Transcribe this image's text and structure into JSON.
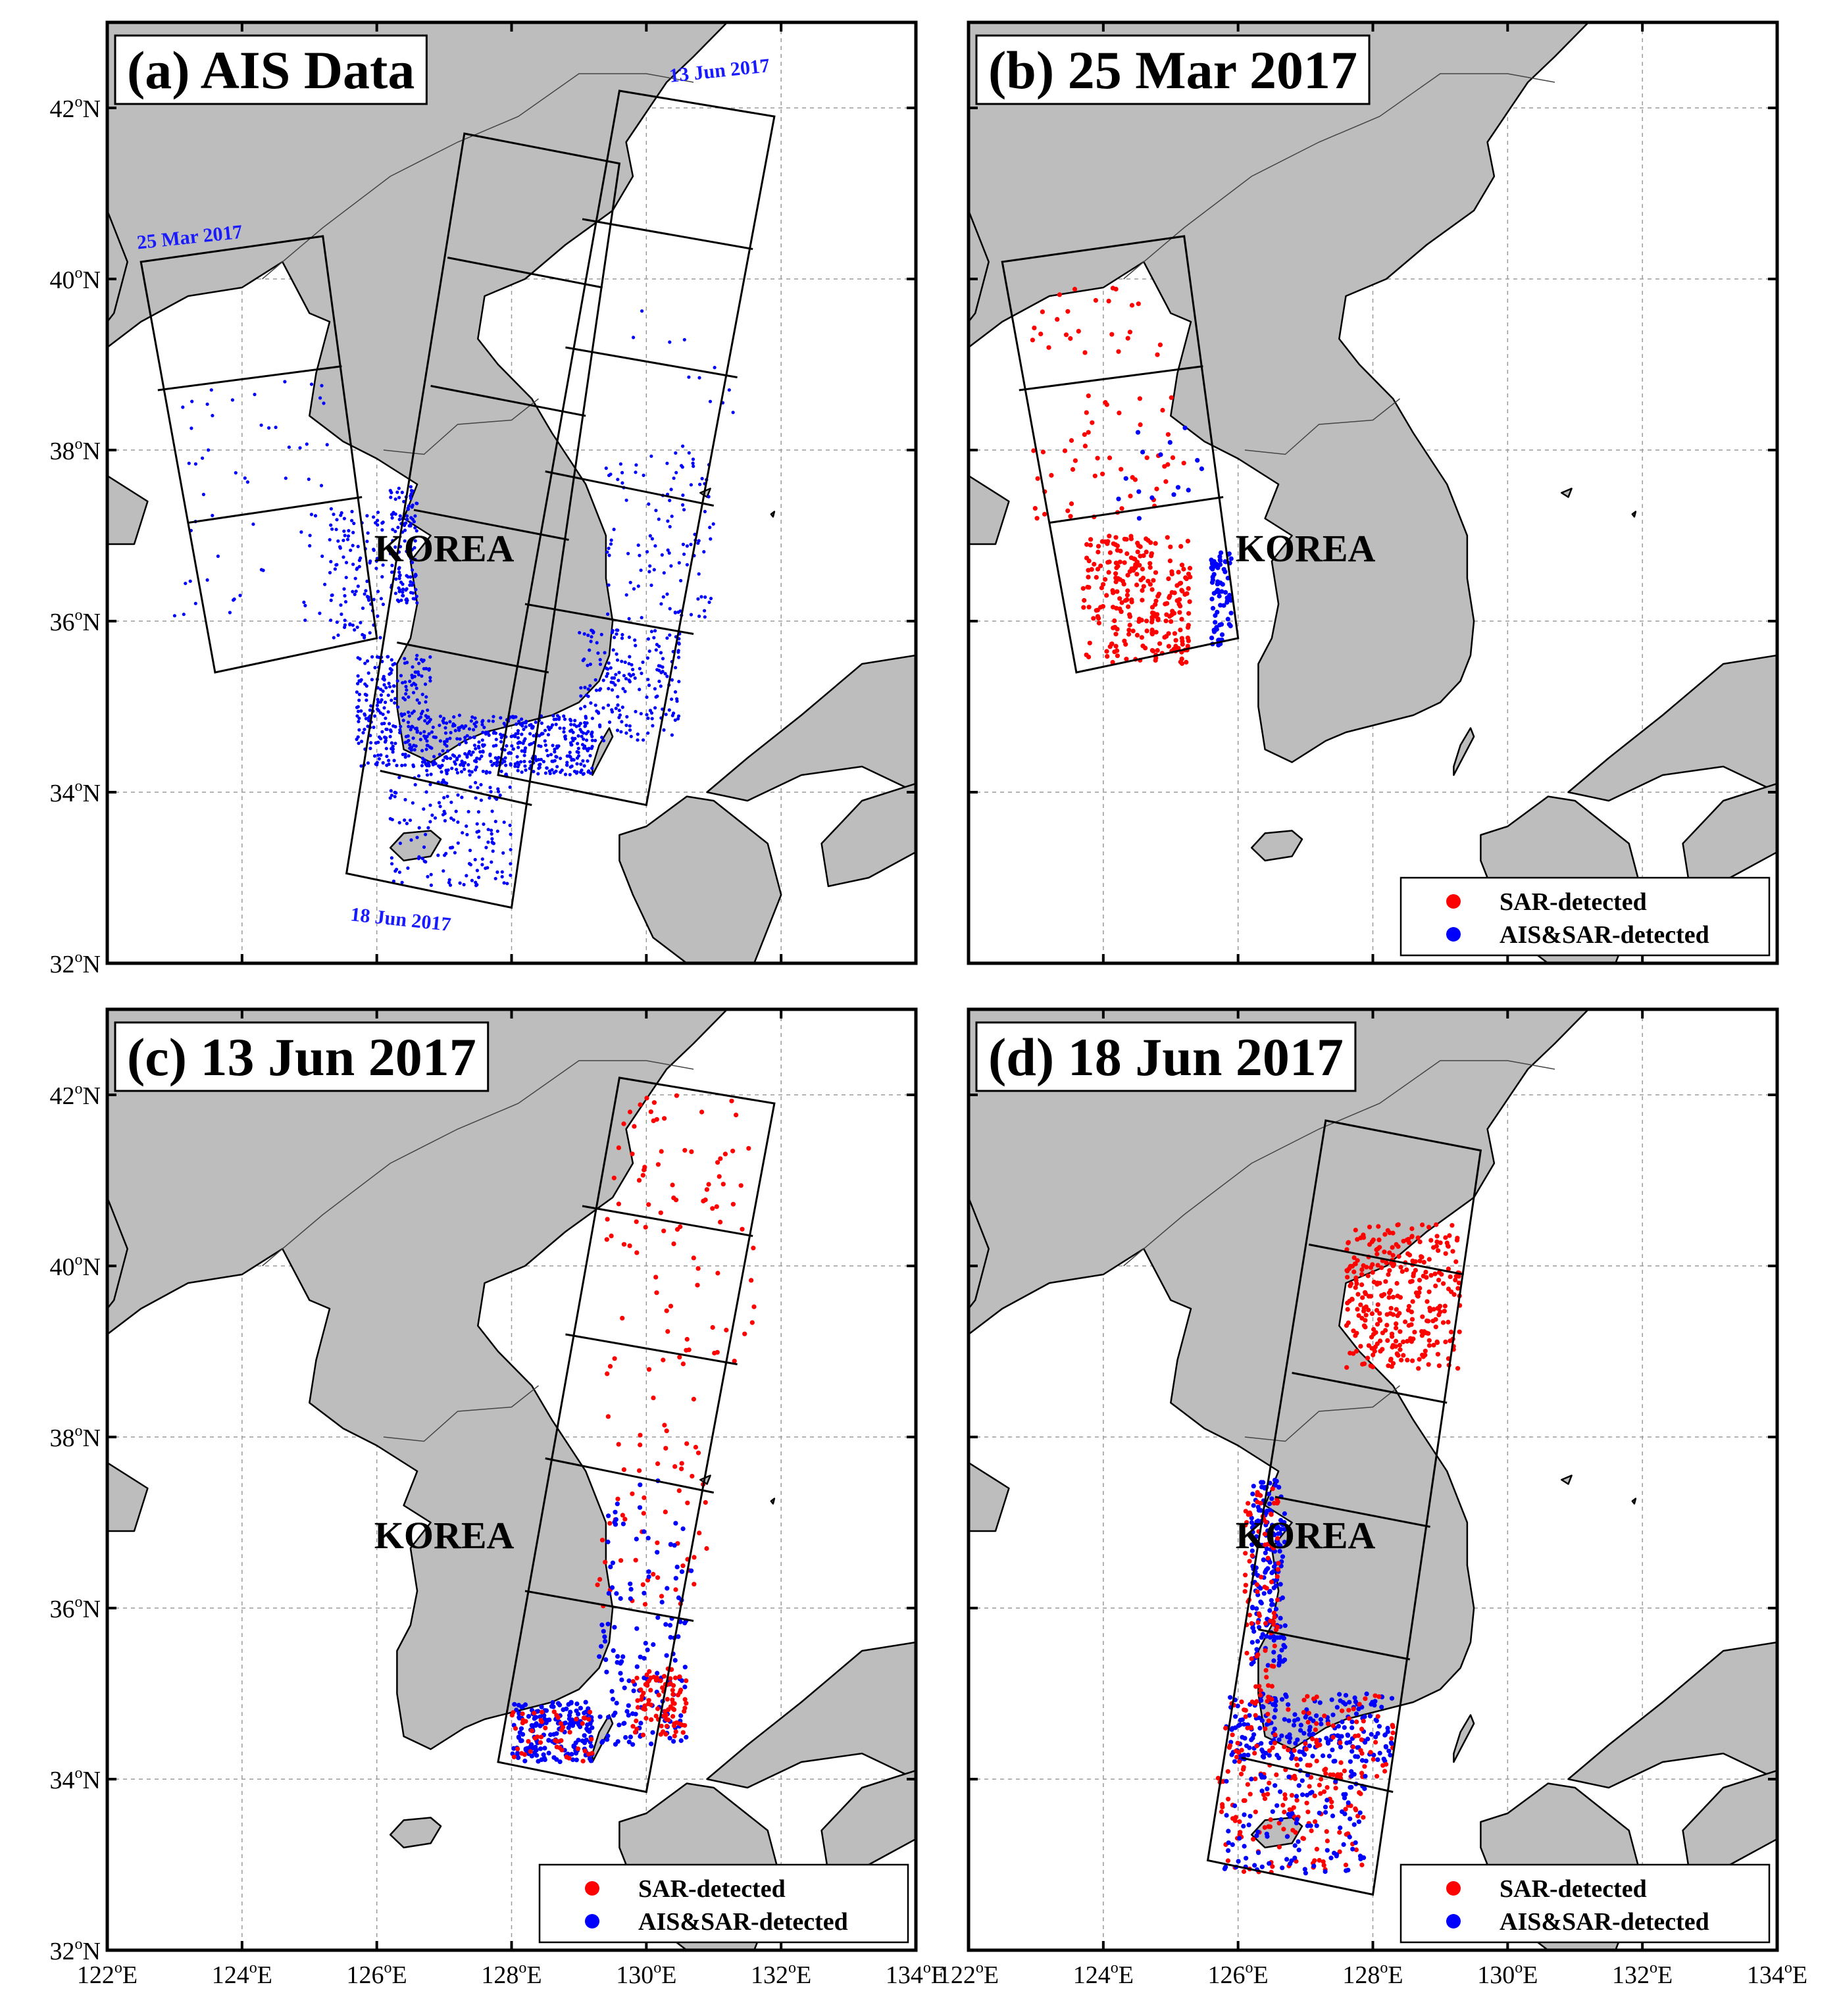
{
  "colors": {
    "land": "#bdbdbd",
    "sea": "#ffffff",
    "sar_detected": "#ff0000",
    "ais_sar_detected": "#0000ff",
    "ais_point": "#0000ff",
    "date_label": "#1a1aff"
  },
  "axes": {
    "lon_min": 122,
    "lon_max": 134,
    "lat_min": 32,
    "lat_max": 43,
    "x_ticks": [
      122,
      124,
      126,
      128,
      130,
      132,
      134
    ],
    "y_ticks": [
      32,
      34,
      36,
      38,
      40,
      42
    ],
    "x_unit": "E",
    "y_unit": "N",
    "degree_symbol": "o"
  },
  "korea_label": "KOREA",
  "legend": {
    "sar": "SAR-detected",
    "ais_sar": "AIS&SAR-detected"
  },
  "panels": [
    {
      "id": "a",
      "title": "(a) AIS Data",
      "legend": false,
      "frames": [
        "mar25",
        "jun13",
        "jun18"
      ],
      "points": "ais",
      "date_labels": [
        "25 Mar 2017",
        "13 Jun 2017",
        "18 Jun 2017"
      ]
    },
    {
      "id": "b",
      "title": "(b) 25 Mar 2017",
      "legend": true,
      "frames": [
        "mar25"
      ],
      "points": "mar25"
    },
    {
      "id": "c",
      "title": "(c) 13 Jun 2017",
      "legend": true,
      "frames": [
        "jun13"
      ],
      "points": "jun13"
    },
    {
      "id": "d",
      "title": "(d) 18 Jun 2017",
      "legend": true,
      "frames": [
        "jun18"
      ],
      "points": "jun18"
    }
  ],
  "chart_data": {
    "type": "map",
    "scenes": {
      "mar25": {
        "date": "25 Mar 2017",
        "corners": [
          [
            122.5,
            40.2
          ],
          [
            125.2,
            40.5
          ],
          [
            126.0,
            35.8
          ],
          [
            123.6,
            35.4
          ]
        ],
        "subframe_lines": [
          [
            [
              122.75,
              38.7
            ],
            [
              125.48,
              38.98
            ]
          ],
          [
            [
              123.2,
              37.15
            ],
            [
              125.78,
              37.45
            ]
          ]
        ]
      },
      "jun13": {
        "date": "13 Jun 2017",
        "corners": [
          [
            129.6,
            42.2
          ],
          [
            131.9,
            41.9
          ],
          [
            130.0,
            33.85
          ],
          [
            127.8,
            34.2
          ]
        ],
        "subframe_lines": [
          [
            [
              129.05,
              40.7
            ],
            [
              131.58,
              40.35
            ]
          ],
          [
            [
              128.8,
              39.2
            ],
            [
              131.35,
              38.85
            ]
          ],
          [
            [
              128.5,
              37.75
            ],
            [
              131.0,
              37.35
            ]
          ],
          [
            [
              128.2,
              36.2
            ],
            [
              130.7,
              35.85
            ]
          ]
        ]
      },
      "jun18": {
        "date": "18 Jun 2017",
        "corners": [
          [
            127.3,
            41.7
          ],
          [
            129.6,
            41.35
          ],
          [
            128.0,
            32.65
          ],
          [
            125.55,
            33.05
          ]
        ],
        "subframe_lines": [
          [
            [
              127.05,
              40.25
            ],
            [
              129.35,
              39.9
            ]
          ],
          [
            [
              126.8,
              38.75
            ],
            [
              129.1,
              38.4
            ]
          ],
          [
            [
              126.55,
              37.3
            ],
            [
              128.85,
              36.95
            ]
          ],
          [
            [
              126.3,
              35.75
            ],
            [
              128.55,
              35.4
            ]
          ],
          [
            [
              126.05,
              34.25
            ],
            [
              128.3,
              33.85
            ]
          ]
        ]
      }
    },
    "point_clusters": {
      "ais": [
        {
          "lon": [
            125.7,
            126.8
          ],
          "lat": [
            34.3,
            35.6
          ],
          "n": 260,
          "cls": "ais"
        },
        {
          "lon": [
            126.2,
            126.6
          ],
          "lat": [
            36.2,
            37.6
          ],
          "n": 120,
          "cls": "ais"
        },
        {
          "lon": [
            125.3,
            126.1
          ],
          "lat": [
            35.8,
            37.3
          ],
          "n": 110,
          "cls": "ais"
        },
        {
          "lon": [
            126.7,
            129.2
          ],
          "lat": [
            34.2,
            34.9
          ],
          "n": 420,
          "cls": "ais"
        },
        {
          "lon": [
            129.0,
            130.5
          ],
          "lat": [
            34.6,
            35.9
          ],
          "n": 200,
          "cls": "ais"
        },
        {
          "lon": [
            129.4,
            131.0
          ],
          "lat": [
            36.0,
            38.0
          ],
          "n": 110,
          "cls": "ais"
        },
        {
          "lon": [
            126.2,
            128.0
          ],
          "lat": [
            32.9,
            34.2
          ],
          "n": 150,
          "cls": "ais"
        },
        {
          "lon": [
            123.0,
            125.4
          ],
          "lat": [
            36.0,
            38.8
          ],
          "n": 60,
          "cls": "ais"
        },
        {
          "lon": [
            129.6,
            131.3
          ],
          "lat": [
            38.0,
            40.2
          ],
          "n": 12,
          "cls": "ais"
        }
      ],
      "mar25": [
        {
          "lon": [
            123.7,
            125.3
          ],
          "lat": [
            35.5,
            37.0
          ],
          "n": 260,
          "cls": "sar"
        },
        {
          "lon": [
            122.9,
            125.2
          ],
          "lat": [
            37.2,
            38.7
          ],
          "n": 50,
          "cls": "sar"
        },
        {
          "lon": [
            122.9,
            124.9
          ],
          "lat": [
            39.1,
            39.9
          ],
          "n": 25,
          "cls": "sar"
        },
        {
          "lon": [
            125.6,
            125.9
          ],
          "lat": [
            35.7,
            36.8
          ],
          "n": 70,
          "cls": "ais_sar"
        },
        {
          "lon": [
            124.2,
            125.5
          ],
          "lat": [
            37.2,
            38.3
          ],
          "n": 15,
          "cls": "ais_sar"
        }
      ],
      "jun13": [
        {
          "lon": [
            129.4,
            131.6
          ],
          "lat": [
            38.7,
            42.0
          ],
          "n": 90,
          "cls": "sar"
        },
        {
          "lon": [
            129.2,
            130.9
          ],
          "lat": [
            36.0,
            38.5
          ],
          "n": 60,
          "cls": "sar"
        },
        {
          "lon": [
            128.0,
            129.2
          ],
          "lat": [
            34.2,
            34.9
          ],
          "n": 180,
          "cls": "ais_sar"
        },
        {
          "lon": [
            129.3,
            130.6
          ],
          "lat": [
            34.4,
            35.9
          ],
          "n": 110,
          "cls": "ais_sar"
        },
        {
          "lon": [
            129.8,
            130.6
          ],
          "lat": [
            34.5,
            35.3
          ],
          "n": 90,
          "cls": "sar"
        },
        {
          "lon": [
            128.0,
            129.2
          ],
          "lat": [
            34.2,
            34.8
          ],
          "n": 50,
          "cls": "sar"
        },
        {
          "lon": [
            129.4,
            130.7
          ],
          "lat": [
            36.0,
            37.5
          ],
          "n": 40,
          "cls": "ais_sar"
        }
      ],
      "jun18": [
        {
          "lon": [
            127.6,
            129.3
          ],
          "lat": [
            38.8,
            40.5
          ],
          "n": 320,
          "cls": "sar"
        },
        {
          "lon": [
            126.2,
            126.7
          ],
          "lat": [
            35.3,
            37.5
          ],
          "n": 180,
          "cls": "ais_sar"
        },
        {
          "lon": [
            126.1,
            126.6
          ],
          "lat": [
            35.0,
            37.4
          ],
          "n": 80,
          "cls": "sar"
        },
        {
          "lon": [
            125.8,
            128.3
          ],
          "lat": [
            34.2,
            35.0
          ],
          "n": 220,
          "cls": "ais_sar"
        },
        {
          "lon": [
            125.8,
            128.3
          ],
          "lat": [
            34.0,
            35.0
          ],
          "n": 120,
          "cls": "sar"
        },
        {
          "lon": [
            125.7,
            127.9
          ],
          "lat": [
            32.9,
            34.1
          ],
          "n": 120,
          "cls": "sar"
        },
        {
          "lon": [
            125.7,
            127.9
          ],
          "lat": [
            32.9,
            34.1
          ],
          "n": 110,
          "cls": "ais_sar"
        }
      ]
    }
  }
}
